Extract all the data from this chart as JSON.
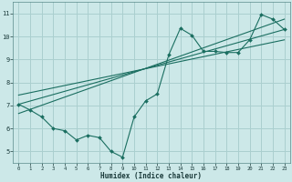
{
  "xlabel": "Humidex (Indice chaleur)",
  "ylabel": "",
  "bg_color": "#cce8e8",
  "grid_color": "#aacfcf",
  "line_color": "#1a6e60",
  "xlim": [
    -0.5,
    23.5
  ],
  "ylim": [
    4.5,
    11.5
  ],
  "xticks": [
    0,
    1,
    2,
    3,
    4,
    5,
    6,
    7,
    8,
    9,
    10,
    11,
    12,
    13,
    14,
    15,
    16,
    17,
    18,
    19,
    20,
    21,
    22,
    23
  ],
  "yticks": [
    5,
    6,
    7,
    8,
    9,
    10,
    11
  ],
  "scatter_x": [
    0,
    1,
    2,
    3,
    4,
    5,
    6,
    7,
    8,
    9,
    10,
    11,
    12,
    13,
    14,
    15,
    16,
    17,
    18,
    19,
    20,
    21,
    22,
    23
  ],
  "scatter_y": [
    7.05,
    6.8,
    6.5,
    6.0,
    5.9,
    5.5,
    5.7,
    5.6,
    5.0,
    4.75,
    6.5,
    7.2,
    7.5,
    9.2,
    10.35,
    10.05,
    9.35,
    9.35,
    9.3,
    9.3,
    9.85,
    10.95,
    10.75,
    10.3
  ],
  "reg_lines": [
    {
      "x0": 0,
      "y0": 7.05,
      "x1": 23,
      "y1": 10.3
    },
    {
      "x0": 0,
      "y0": 7.45,
      "x1": 23,
      "y1": 9.85
    },
    {
      "x0": 0,
      "y0": 6.65,
      "x1": 23,
      "y1": 10.75
    }
  ]
}
